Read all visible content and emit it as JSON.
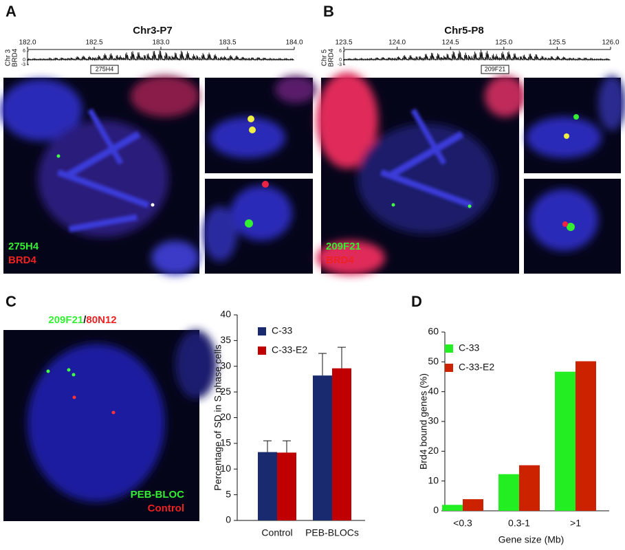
{
  "panels": {
    "a": {
      "letter": "A",
      "probe_label": "275H4",
      "stain_label": "BRD4"
    },
    "b": {
      "letter": "B",
      "probe_label": "209F21",
      "stain_label": "BRD4"
    },
    "c": {
      "letter": "C",
      "probe_green": "209F21",
      "separator": "/",
      "probe_red": "80N12",
      "green_label": "PEB-BLOC",
      "red_label": "Control"
    },
    "d": {
      "letter": "D"
    }
  },
  "chart_data": [
    {
      "type": "track",
      "title": "Chr3-P7",
      "chromosome": "Chr 3",
      "track_name": "BRD4",
      "probe": "275H4",
      "xlim": [
        182,
        184
      ],
      "xticks": [
        {
          "value": 182,
          "label": "182.0"
        },
        182.5,
        {
          "value": 183,
          "label": "183.0"
        },
        183.5,
        {
          "value": 184,
          "label": "184.0"
        }
      ],
      "ylim": [
        -3,
        6
      ],
      "yticks": [
        6,
        0,
        -3
      ]
    },
    {
      "type": "track",
      "title": "Chr5-P8",
      "chromosome": "Chr 5",
      "track_name": "BRD4",
      "probe": "209F21",
      "xlim": [
        123.5,
        126
      ],
      "xticks": [
        123.5,
        {
          "value": 124,
          "label": "124.0"
        },
        124.5,
        {
          "value": 125,
          "label": "125.0"
        },
        125.5,
        {
          "value": 126,
          "label": "126.0"
        }
      ],
      "ylim": [
        -3,
        6
      ],
      "yticks": [
        6,
        0,
        -3
      ]
    },
    {
      "type": "bar",
      "y_label": "Percentage of SD in S phase cells",
      "categories": [
        "Control",
        "PEB-BLOCs"
      ],
      "series": [
        {
          "name": "C-33",
          "color": "#1a2a6e",
          "values": [
            13.3,
            28.2
          ],
          "errors": [
            2.2,
            4.3
          ]
        },
        {
          "name": "C-33-E2",
          "color": "#c00000",
          "values": [
            13.2,
            29.6
          ],
          "errors": [
            2.3,
            4.1
          ]
        }
      ],
      "ylim": [
        0,
        40
      ],
      "yticks": [
        0,
        5,
        10,
        15,
        20,
        25,
        30,
        35,
        40
      ]
    },
    {
      "type": "bar",
      "x_label": "Gene size (Mb)",
      "y_label": "Brd4 bound genes (%)",
      "categories": [
        "<0.3",
        "0.3-1",
        ">1"
      ],
      "series": [
        {
          "name": "C-33",
          "color": "#22ee22",
          "values": [
            2,
            12.3,
            46.7
          ]
        },
        {
          "name": "C-33-E2",
          "color": "#cc2200",
          "values": [
            3.9,
            15.3,
            50.2
          ]
        }
      ],
      "ylim": [
        0,
        60
      ],
      "yticks": [
        0,
        10,
        20,
        30,
        40,
        50,
        60
      ]
    }
  ]
}
